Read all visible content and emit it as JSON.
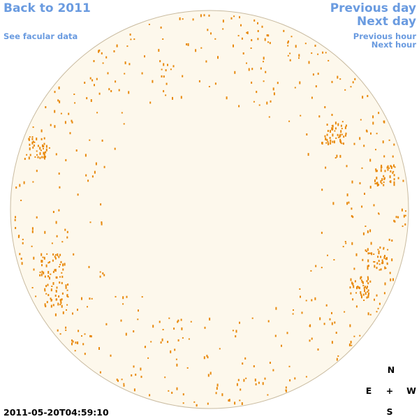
{
  "navigation": {
    "back": "Back to 2011",
    "facular": "See facular data",
    "previous_day": "Previous day",
    "next_day": "Next day",
    "previous_hour": "Previous hour",
    "next_hour": "Next hour"
  },
  "timestamp": "2011-05-20T04:59:10",
  "compass": {
    "north": "N",
    "east": "E",
    "center": "+",
    "west": "W",
    "south": "S"
  }
}
